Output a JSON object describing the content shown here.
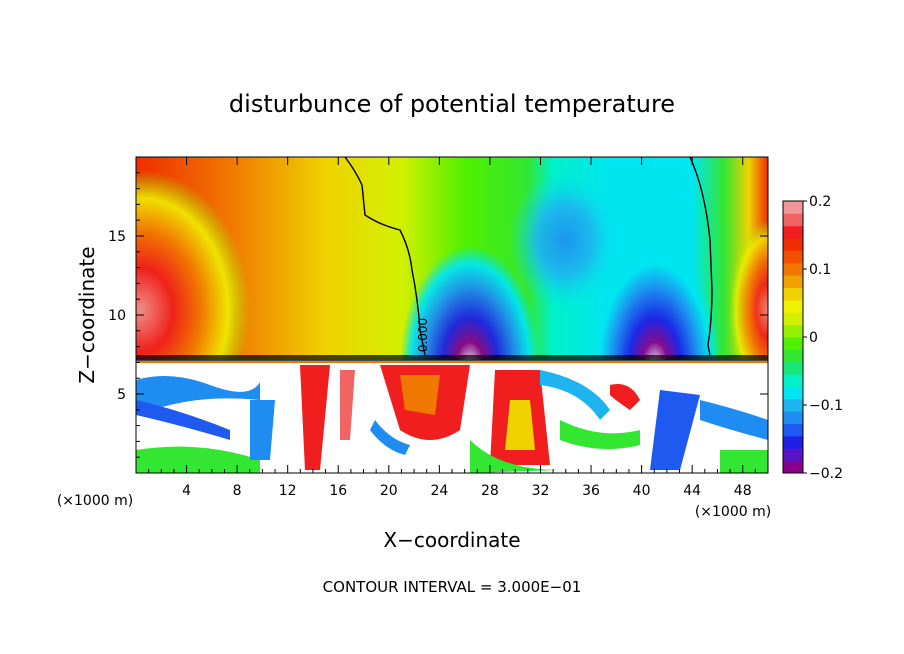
{
  "chart_data": {
    "type": "heatmap",
    "title": "disturbunce of potential temperature",
    "xlabel": "X−coordinate",
    "ylabel": "Z−coordinate",
    "x_unit": "(×1000 m)",
    "x_unit_right": "(×1000 m)",
    "xlim": [
      0,
      50
    ],
    "ylim": [
      0,
      20
    ],
    "x_ticks": [
      4,
      8,
      12,
      16,
      20,
      24,
      28,
      32,
      36,
      40,
      44,
      48
    ],
    "y_ticks": [
      5,
      10,
      15
    ],
    "colorbar": {
      "range": [
        -0.2,
        0.2
      ],
      "tick_labels": [
        "0.2",
        "0.1",
        "0",
        "−0.1",
        "−0.2"
      ],
      "tick_values": [
        0.2,
        0.1,
        0,
        -0.1,
        -0.2
      ],
      "colors": [
        "#8b008b",
        "#5a14c8",
        "#1e1ee6",
        "#1e5af0",
        "#1e8cf0",
        "#1eb4f0",
        "#00e6f0",
        "#00f0c8",
        "#19e678",
        "#32e632",
        "#50f000",
        "#96f000",
        "#d2f000",
        "#f0f000",
        "#f0d200",
        "#f0a000",
        "#f07800",
        "#f05000",
        "#f02d00",
        "#f01e1e",
        "#f06464",
        "#f09696"
      ]
    },
    "contour_label": "0.000",
    "footer": "CONTOUR INTERVAL = 3.000E−01"
  }
}
